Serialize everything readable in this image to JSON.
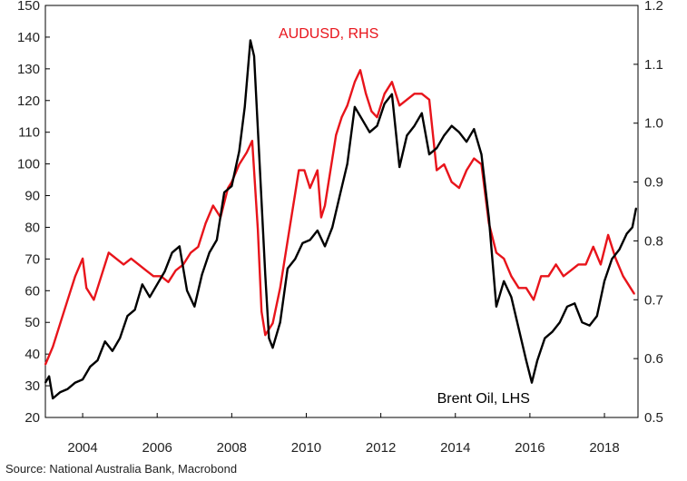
{
  "chart_data": {
    "type": "line",
    "title": "",
    "source": "Source: National Australia Bank, Macrobond",
    "x_range": [
      2003.0,
      2018.9
    ],
    "x_ticks": [
      2004,
      2006,
      2008,
      2010,
      2012,
      2014,
      2016,
      2018
    ],
    "x_tick_labels": [
      "2004",
      "2006",
      "2008",
      "2010",
      "2012",
      "2014",
      "2016",
      "2018"
    ],
    "left_axis": {
      "range": [
        20,
        150
      ],
      "ticks": [
        20,
        30,
        40,
        50,
        60,
        70,
        80,
        90,
        100,
        110,
        120,
        130,
        140,
        150
      ],
      "tick_labels": [
        "20",
        "30",
        "40",
        "50",
        "60",
        "70",
        "80",
        "90",
        "100",
        "110",
        "120",
        "130",
        "140",
        "150"
      ]
    },
    "right_axis": {
      "range": [
        0.5,
        1.2
      ],
      "ticks": [
        0.5,
        0.6,
        0.7,
        0.8,
        0.9,
        1.0,
        1.1,
        1.2
      ],
      "tick_labels": [
        "0.5",
        "0.6",
        "0.7",
        "0.8",
        "0.9",
        "1.0",
        "1.1",
        "1.2"
      ]
    },
    "grid": false,
    "series": [
      {
        "name": "AUDUSD, RHS",
        "axis": "right",
        "color": "#e8141b",
        "label_position": "top-center",
        "x": [
          2003.0,
          2003.2,
          2003.4,
          2003.6,
          2003.8,
          2004.0,
          2004.1,
          2004.3,
          2004.5,
          2004.7,
          2004.9,
          2005.1,
          2005.3,
          2005.5,
          2005.7,
          2005.9,
          2006.1,
          2006.3,
          2006.5,
          2006.7,
          2006.9,
          2007.1,
          2007.3,
          2007.5,
          2007.7,
          2007.9,
          2008.0,
          2008.2,
          2008.4,
          2008.55,
          2008.7,
          2008.8,
          2008.9,
          2009.0,
          2009.1,
          2009.3,
          2009.5,
          2009.7,
          2009.8,
          2009.95,
          2010.1,
          2010.3,
          2010.4,
          2010.5,
          2010.6,
          2010.8,
          2010.95,
          2011.1,
          2011.3,
          2011.45,
          2011.6,
          2011.75,
          2011.9,
          2012.1,
          2012.3,
          2012.5,
          2012.7,
          2012.9,
          2013.1,
          2013.3,
          2013.5,
          2013.7,
          2013.9,
          2014.1,
          2014.3,
          2014.5,
          2014.7,
          2014.9,
          2015.1,
          2015.3,
          2015.5,
          2015.7,
          2015.9,
          2016.1,
          2016.3,
          2016.5,
          2016.7,
          2016.9,
          2017.1,
          2017.3,
          2017.5,
          2017.7,
          2017.9,
          2018.1,
          2018.3,
          2018.5,
          2018.7,
          2018.8
        ],
        "values": [
          0.59,
          0.62,
          0.66,
          0.7,
          0.74,
          0.77,
          0.72,
          0.7,
          0.74,
          0.78,
          0.77,
          0.76,
          0.77,
          0.76,
          0.75,
          0.74,
          0.74,
          0.73,
          0.75,
          0.76,
          0.78,
          0.79,
          0.83,
          0.86,
          0.84,
          0.89,
          0.9,
          0.93,
          0.95,
          0.97,
          0.82,
          0.68,
          0.64,
          0.65,
          0.66,
          0.72,
          0.8,
          0.88,
          0.92,
          0.92,
          0.89,
          0.92,
          0.84,
          0.86,
          0.9,
          0.98,
          1.01,
          1.03,
          1.07,
          1.09,
          1.05,
          1.02,
          1.01,
          1.05,
          1.07,
          1.03,
          1.04,
          1.05,
          1.05,
          1.04,
          0.92,
          0.93,
          0.9,
          0.89,
          0.92,
          0.94,
          0.93,
          0.83,
          0.78,
          0.77,
          0.74,
          0.72,
          0.72,
          0.7,
          0.74,
          0.74,
          0.76,
          0.74,
          0.75,
          0.76,
          0.76,
          0.79,
          0.76,
          0.81,
          0.77,
          0.74,
          0.72,
          0.71
        ]
      },
      {
        "name": "Brent Oil, LHS",
        "axis": "left",
        "color": "#000000",
        "label_position": "bottom-right",
        "x": [
          2003.0,
          2003.1,
          2003.2,
          2003.4,
          2003.6,
          2003.8,
          2004.0,
          2004.2,
          2004.4,
          2004.6,
          2004.8,
          2005.0,
          2005.2,
          2005.4,
          2005.6,
          2005.8,
          2006.0,
          2006.2,
          2006.4,
          2006.6,
          2006.8,
          2007.0,
          2007.2,
          2007.4,
          2007.6,
          2007.8,
          2008.0,
          2008.2,
          2008.35,
          2008.5,
          2008.6,
          2008.75,
          2008.9,
          2009.0,
          2009.1,
          2009.3,
          2009.5,
          2009.7,
          2009.9,
          2010.1,
          2010.3,
          2010.5,
          2010.7,
          2010.9,
          2011.1,
          2011.3,
          2011.5,
          2011.7,
          2011.9,
          2012.1,
          2012.3,
          2012.5,
          2012.7,
          2012.9,
          2013.1,
          2013.3,
          2013.5,
          2013.7,
          2013.9,
          2014.1,
          2014.3,
          2014.5,
          2014.7,
          2014.9,
          2015.1,
          2015.3,
          2015.5,
          2015.7,
          2015.9,
          2016.05,
          2016.2,
          2016.4,
          2016.6,
          2016.8,
          2017.0,
          2017.2,
          2017.4,
          2017.6,
          2017.8,
          2018.0,
          2018.2,
          2018.4,
          2018.6,
          2018.75,
          2018.85
        ],
        "values": [
          31,
          33,
          26,
          28,
          29,
          31,
          32,
          36,
          38,
          44,
          41,
          45,
          52,
          54,
          62,
          58,
          62,
          66,
          72,
          74,
          60,
          55,
          65,
          72,
          76,
          91,
          93,
          104,
          118,
          139,
          134,
          100,
          65,
          45,
          42,
          50,
          67,
          70,
          75,
          76,
          79,
          74,
          80,
          90,
          100,
          118,
          114,
          110,
          112,
          119,
          122,
          99,
          109,
          112,
          116,
          103,
          105,
          109,
          112,
          110,
          107,
          111,
          103,
          83,
          55,
          63,
          58,
          48,
          38,
          31,
          38,
          45,
          47,
          50,
          55,
          56,
          50,
          49,
          52,
          63,
          70,
          73,
          78,
          80,
          86
        ]
      }
    ]
  }
}
